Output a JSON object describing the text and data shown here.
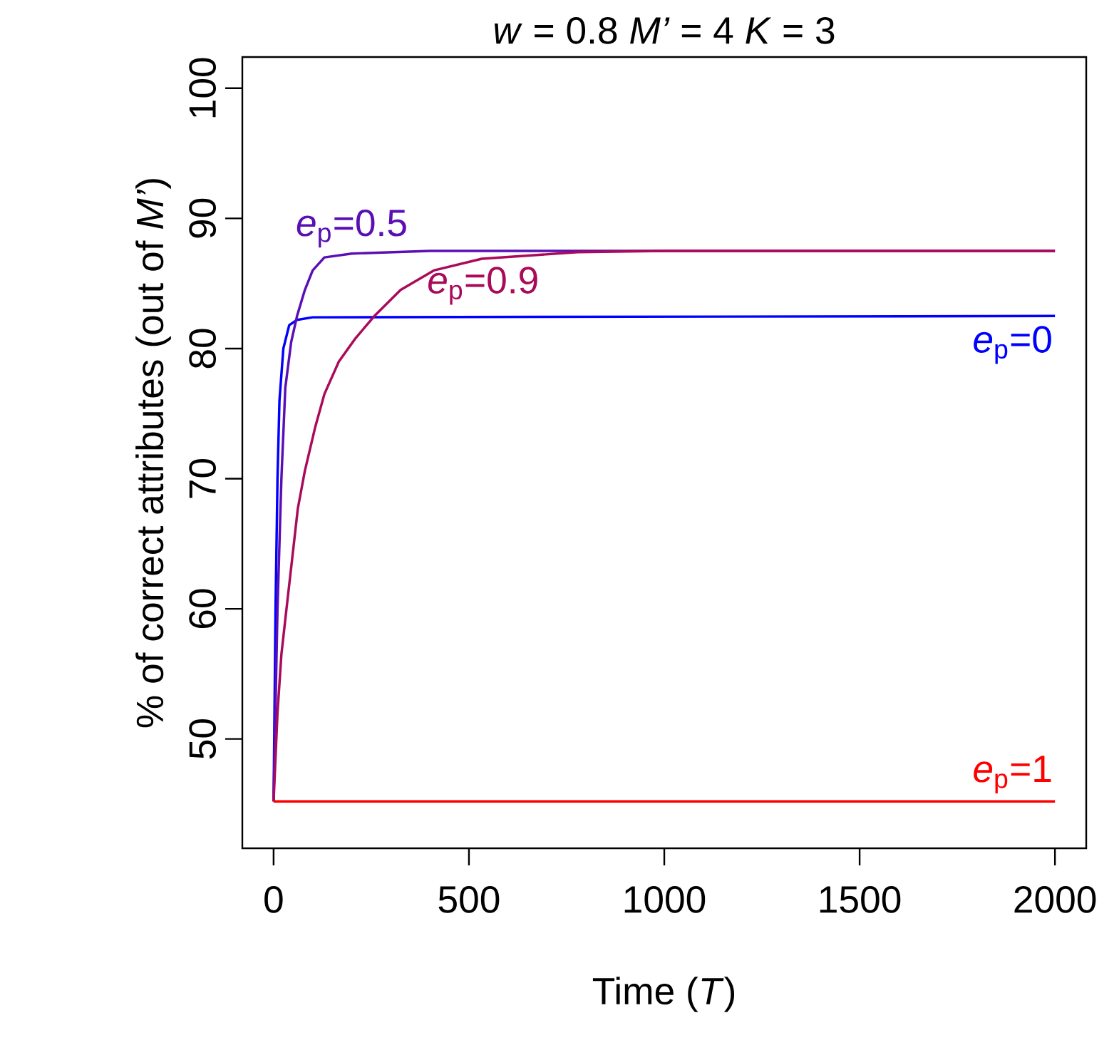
{
  "chart_data": {
    "type": "line",
    "title": "*w* = 0.8    *M’* = 4    *K* = 3",
    "xlabel": "Time (*T*)",
    "ylabel": "% of correct attributes (out of *M’*)",
    "xlim": [
      -80,
      2080
    ],
    "ylim": [
      41.6,
      102.4
    ],
    "xticks": [
      0,
      500,
      1000,
      1500,
      2000
    ],
    "yticks": [
      50,
      60,
      70,
      80,
      90,
      100
    ],
    "grid": false,
    "legend": false,
    "line_style": "solid",
    "marker": "none",
    "series": [
      {
        "name": "*e*$_{p}$=0",
        "color": "#0000ff",
        "x": [
          0,
          5,
          10,
          15,
          25,
          40,
          60,
          100,
          2000
        ],
        "values": [
          45.2,
          60,
          70,
          76,
          80,
          81.8,
          82.2,
          82.4,
          82.5
        ]
      },
      {
        "name": "*e*$_{p}$=0.5",
        "color": "#5a0fb4",
        "x": [
          0,
          10,
          20,
          30,
          45,
          60,
          80,
          100,
          130,
          200,
          400,
          2000
        ],
        "values": [
          45.2,
          60,
          70,
          77,
          80.5,
          82.5,
          84.5,
          86,
          87,
          87.3,
          87.5,
          87.5
        ]
      },
      {
        "name": "*e*$_{p}$=0.9",
        "color": "#aa0a5a",
        "x": [
          0,
          10,
          20,
          33,
          50,
          62,
          80,
          106,
          130,
          167,
          210,
          258,
          325,
          410,
          533,
          778,
          1000,
          2000
        ],
        "values": [
          45.2,
          52,
          56.5,
          60,
          64.5,
          67.7,
          70.6,
          73.9,
          76.5,
          79,
          80.8,
          82.5,
          84.5,
          86,
          86.9,
          87.4,
          87.5,
          87.5
        ]
      },
      {
        "name": "*e*$_{p}$=1",
        "color": "#ff0000",
        "x": [
          0,
          2000
        ],
        "values": [
          45.2,
          45.2
        ]
      }
    ]
  }
}
